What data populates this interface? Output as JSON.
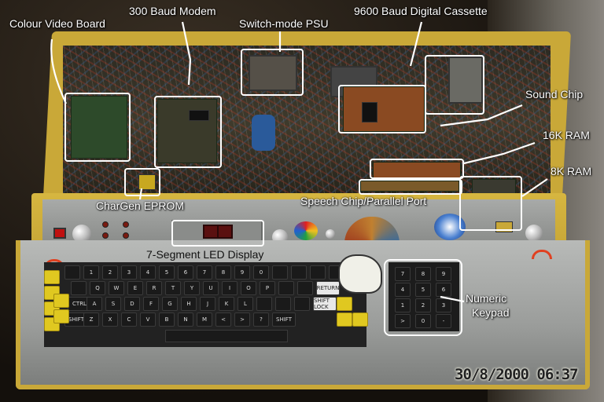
{
  "labels": {
    "colour_video_board": "Colour Video Board",
    "modem": "300 Baud Modem",
    "psu": "Switch-mode PSU",
    "cassette": "9600 Baud Digital Cassette",
    "sound_chip": "Sound Chip",
    "ram16": "16K RAM",
    "ram8": "8K RAM",
    "chargen": "CharGen EPROM",
    "speech": "Speech Chip/Parallel Port",
    "led_display": "7-Segment LED Display",
    "numeric": "Numeric",
    "keypad": "Keypad"
  },
  "timestamp": "30/8/2000 06:37",
  "keys": {
    "row1": [
      "",
      "1",
      "2",
      "3",
      "4",
      "5",
      "6",
      "7",
      "8",
      "9",
      "0",
      "",
      "",
      "",
      ""
    ],
    "row2": [
      "",
      "Q",
      "W",
      "E",
      "R",
      "T",
      "Y",
      "U",
      "I",
      "O",
      "P",
      "",
      "",
      "RETURN"
    ],
    "row3": [
      "CTRL",
      "A",
      "S",
      "D",
      "F",
      "G",
      "H",
      "J",
      "K",
      "L",
      "",
      "",
      "",
      "SHIFT LOCK"
    ],
    "row4": [
      "SHIFT",
      "Z",
      "X",
      "C",
      "V",
      "B",
      "N",
      "M",
      "<",
      ">",
      "?",
      "SHIFT"
    ],
    "numpad": [
      "7",
      "8",
      "9",
      "4",
      "5",
      "6",
      "1",
      "2",
      "3",
      ">",
      "0",
      "-"
    ]
  },
  "colors": {
    "case": "#c9a838",
    "annotation": "#ffffff",
    "keycap_yellow": "#e0c820"
  }
}
